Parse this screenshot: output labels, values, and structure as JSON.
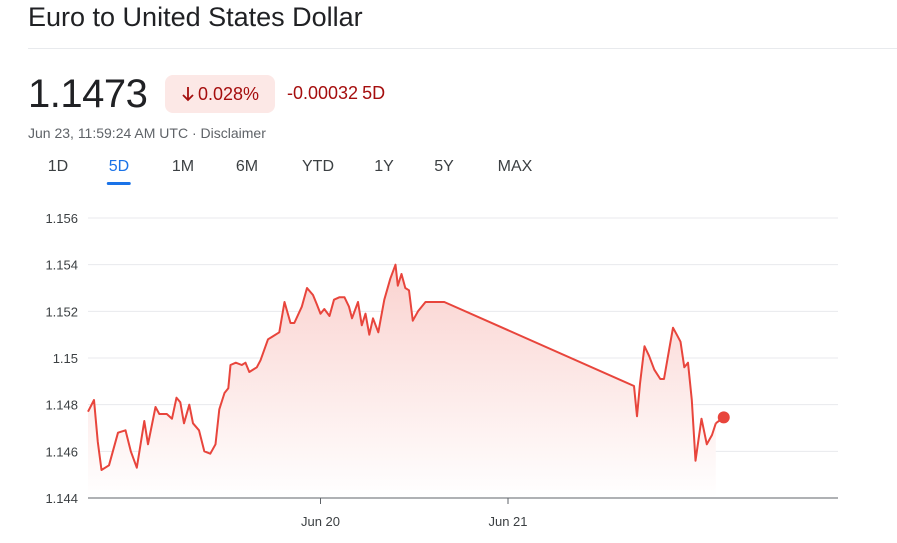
{
  "title": "Euro to United States Dollar",
  "price": "1.1473",
  "change_percent": "0.028%",
  "change_direction": "down",
  "change_absolute": "-0.00032",
  "change_period": "5D",
  "timestamp": "Jun 23, 11:59:24 AM UTC",
  "separator": " · ",
  "disclaimer": "Disclaimer",
  "tabs": [
    {
      "label": "1D",
      "active": false
    },
    {
      "label": "5D",
      "active": true
    },
    {
      "label": "1M",
      "active": false
    },
    {
      "label": "6M",
      "active": false
    },
    {
      "label": "YTD",
      "active": false
    },
    {
      "label": "1Y",
      "active": false
    },
    {
      "label": "5Y",
      "active": false
    },
    {
      "label": "MAX",
      "active": false
    }
  ],
  "colors": {
    "line": "#e8453c",
    "area_top": "#fad2cf",
    "negative_text": "#a50e0e",
    "badge_bg": "#fce8e6",
    "accent": "#1a73e8",
    "grid": "#e8eaed"
  },
  "chart_data": {
    "type": "area",
    "y_ticks": [
      "1.156",
      "1.154",
      "1.152",
      "1.15",
      "1.148",
      "1.146",
      "1.144"
    ],
    "y_tick_values": [
      1.156,
      1.154,
      1.152,
      1.15,
      1.148,
      1.146,
      1.144
    ],
    "x_ticks": [
      {
        "label": "Jun 20",
        "t": 0.31
      },
      {
        "label": "Jun 21",
        "t": 0.56
      }
    ],
    "ylim": [
      1.144,
      1.156
    ],
    "grid": true,
    "series": [
      {
        "values": [
          [
            0.0,
            1.1477
          ],
          [
            0.008,
            1.1482
          ],
          [
            0.013,
            1.1464
          ],
          [
            0.018,
            1.1452
          ],
          [
            0.028,
            1.1454
          ],
          [
            0.04,
            1.1468
          ],
          [
            0.05,
            1.1469
          ],
          [
            0.057,
            1.146
          ],
          [
            0.065,
            1.1453
          ],
          [
            0.075,
            1.1473
          ],
          [
            0.08,
            1.1463
          ],
          [
            0.09,
            1.1479
          ],
          [
            0.095,
            1.1476
          ],
          [
            0.105,
            1.1476
          ],
          [
            0.112,
            1.1474
          ],
          [
            0.118,
            1.1483
          ],
          [
            0.123,
            1.1481
          ],
          [
            0.128,
            1.1472
          ],
          [
            0.135,
            1.148
          ],
          [
            0.14,
            1.1472
          ],
          [
            0.148,
            1.1469
          ],
          [
            0.155,
            1.146
          ],
          [
            0.163,
            1.1459
          ],
          [
            0.17,
            1.1463
          ],
          [
            0.175,
            1.1478
          ],
          [
            0.182,
            1.1485
          ],
          [
            0.187,
            1.1487
          ],
          [
            0.19,
            1.1497
          ],
          [
            0.197,
            1.1498
          ],
          [
            0.205,
            1.1497
          ],
          [
            0.21,
            1.1498
          ],
          [
            0.215,
            1.1494
          ],
          [
            0.225,
            1.1496
          ],
          [
            0.23,
            1.1499
          ],
          [
            0.24,
            1.1508
          ],
          [
            0.245,
            1.1509
          ],
          [
            0.255,
            1.1511
          ],
          [
            0.262,
            1.1524
          ],
          [
            0.27,
            1.1515
          ],
          [
            0.275,
            1.1515
          ],
          [
            0.285,
            1.1522
          ],
          [
            0.292,
            1.153
          ],
          [
            0.3,
            1.1527
          ],
          [
            0.305,
            1.1523
          ],
          [
            0.31,
            1.1519
          ],
          [
            0.315,
            1.1521
          ],
          [
            0.322,
            1.1518
          ],
          [
            0.328,
            1.1525
          ],
          [
            0.335,
            1.1526
          ],
          [
            0.342,
            1.1526
          ],
          [
            0.348,
            1.1522
          ],
          [
            0.352,
            1.1517
          ],
          [
            0.36,
            1.1524
          ],
          [
            0.365,
            1.1514
          ],
          [
            0.37,
            1.1519
          ],
          [
            0.375,
            1.151
          ],
          [
            0.38,
            1.1517
          ],
          [
            0.387,
            1.1511
          ],
          [
            0.395,
            1.1525
          ],
          [
            0.403,
            1.1534
          ],
          [
            0.41,
            1.154
          ],
          [
            0.413,
            1.1531
          ],
          [
            0.418,
            1.1536
          ],
          [
            0.423,
            1.153
          ],
          [
            0.428,
            1.1529
          ],
          [
            0.433,
            1.1516
          ],
          [
            0.44,
            1.152
          ],
          [
            0.45,
            1.1524
          ],
          [
            0.475,
            1.1524
          ],
          [
            0.728,
            1.1488
          ],
          [
            0.732,
            1.1475
          ],
          [
            0.736,
            1.1489
          ],
          [
            0.742,
            1.1505
          ],
          [
            0.748,
            1.1501
          ],
          [
            0.755,
            1.1495
          ],
          [
            0.763,
            1.1491
          ],
          [
            0.768,
            1.1491
          ],
          [
            0.775,
            1.1504
          ],
          [
            0.78,
            1.1513
          ],
          [
            0.785,
            1.151
          ],
          [
            0.79,
            1.1507
          ],
          [
            0.795,
            1.1496
          ],
          [
            0.8,
            1.1498
          ],
          [
            0.805,
            1.1482
          ],
          [
            0.81,
            1.1456
          ],
          [
            0.818,
            1.1474
          ],
          [
            0.825,
            1.1463
          ],
          [
            0.832,
            1.1467
          ],
          [
            0.837,
            1.1472
          ]
        ]
      }
    ],
    "last_point_marker": true
  }
}
